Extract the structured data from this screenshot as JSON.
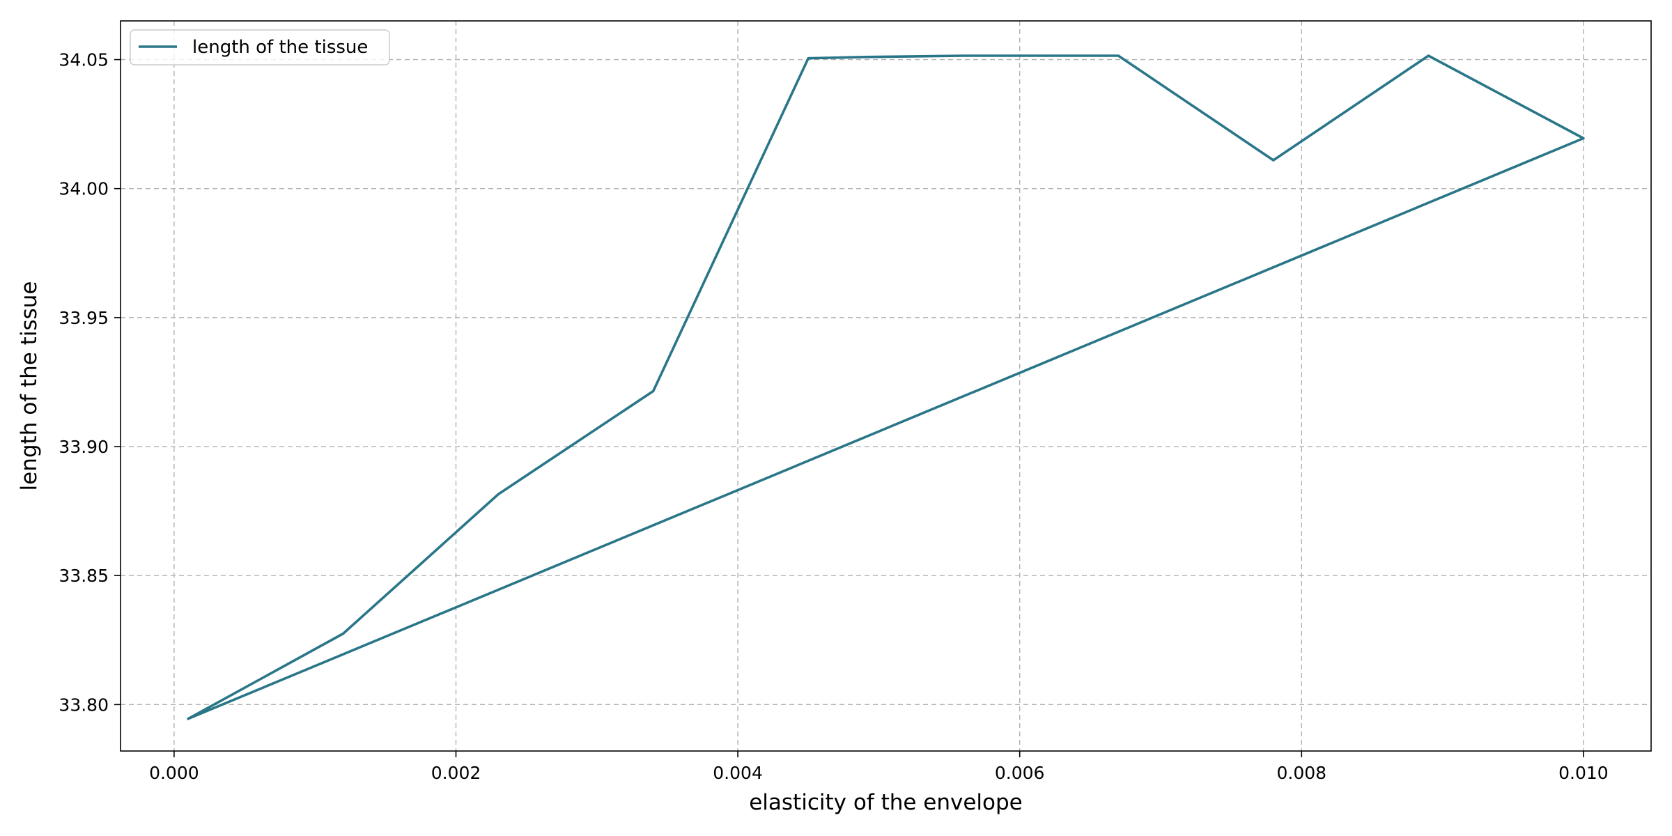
{
  "chart_data": {
    "type": "line",
    "title": "",
    "xlabel": "elasticity of the envelope",
    "ylabel": "length of the tissue",
    "xlim": [
      -0.00038,
      0.01048
    ],
    "ylim": [
      33.782,
      34.065
    ],
    "xticks": [
      0.0,
      0.002,
      0.004,
      0.006,
      0.008,
      0.01
    ],
    "xtick_labels": [
      "0.000",
      "0.002",
      "0.004",
      "0.006",
      "0.008",
      "0.010"
    ],
    "yticks": [
      33.8,
      33.85,
      33.9,
      33.95,
      34.0,
      34.05
    ],
    "ytick_labels": [
      "33.80",
      "33.85",
      "33.90",
      "33.95",
      "34.00",
      "34.05"
    ],
    "grid": true,
    "legend": {
      "position": "top-left"
    },
    "series": [
      {
        "name": "length of the tissue",
        "color": "#2a7689",
        "x": [
          0.0001,
          0.0012,
          0.0023,
          0.0034,
          0.0045,
          0.0049,
          0.0052,
          0.0056,
          0.0067,
          0.0078,
          0.0089,
          0.01,
          0.0001
        ],
        "y": [
          33.7945,
          33.8275,
          33.8815,
          33.9215,
          34.0505,
          34.051,
          34.0512,
          34.0515,
          34.0515,
          34.011,
          34.0515,
          34.0195,
          33.7945
        ]
      }
    ]
  }
}
